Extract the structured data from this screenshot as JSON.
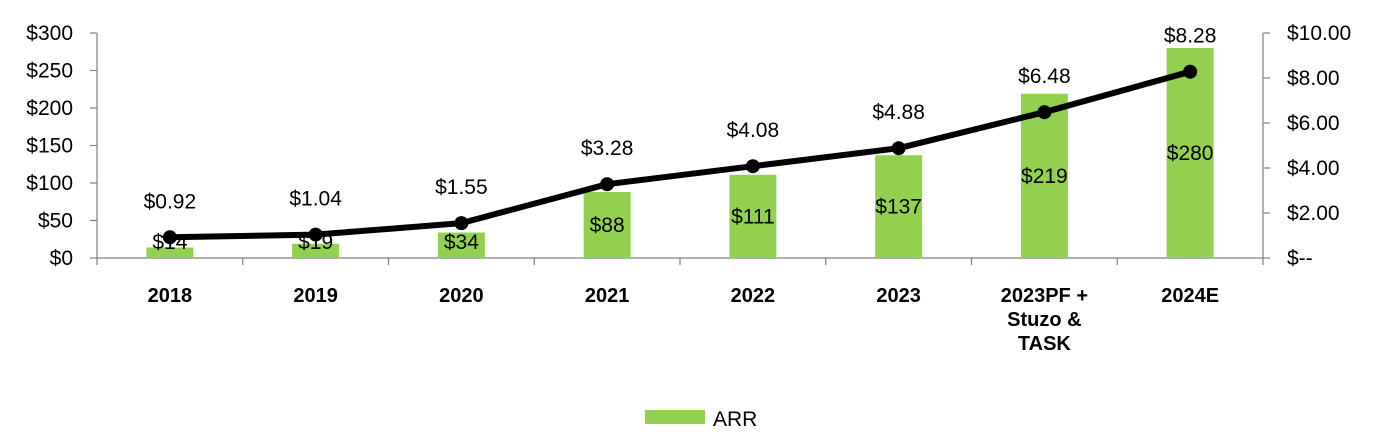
{
  "chart_data": {
    "type": "bar",
    "categories": [
      [
        "2018"
      ],
      [
        "2019"
      ],
      [
        "2020"
      ],
      [
        "2021"
      ],
      [
        "2022"
      ],
      [
        "2023"
      ],
      [
        "2023PF +",
        "Stuzo &",
        "TASK"
      ],
      [
        "2024E"
      ]
    ],
    "series": [
      {
        "name": "ARR",
        "type": "bar",
        "axis": "left",
        "color": "#92d050",
        "values": [
          14,
          19,
          34,
          88,
          111,
          137,
          219,
          280
        ],
        "labels": [
          "$14",
          "$19",
          "$34",
          "$88",
          "$111",
          "$137",
          "$219",
          "$280"
        ]
      },
      {
        "type": "line",
        "axis": "right",
        "color": "#000000",
        "values": [
          0.92,
          1.04,
          1.55,
          3.28,
          4.08,
          4.88,
          6.48,
          8.28
        ],
        "labels": [
          "$0.92",
          "$1.04",
          "$1.55",
          "$3.28",
          "$4.08",
          "$4.88",
          "$6.48",
          "$8.28"
        ]
      }
    ],
    "ylim_left": [
      0,
      300
    ],
    "yticks_left": [
      "$0",
      "$50",
      "$100",
      "$150",
      "$200",
      "$250",
      "$300"
    ],
    "ylim_right": [
      0,
      10
    ],
    "yticks_right": [
      "$--",
      "$2.00",
      "$4.00",
      "$6.00",
      "$8.00",
      "$10.00"
    ],
    "grid": false,
    "legend_position": "bottom-center",
    "legend": [
      {
        "label": "ARR",
        "color": "#92d050"
      }
    ]
  }
}
